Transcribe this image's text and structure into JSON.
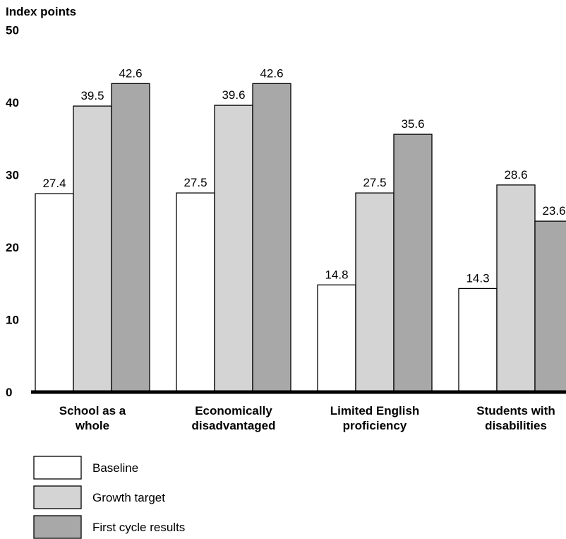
{
  "chart_data": {
    "type": "bar",
    "ylabel": "Index points",
    "ylim": [
      0,
      50
    ],
    "yticks": [
      0,
      10,
      20,
      30,
      40,
      50
    ],
    "grid": false,
    "legend_position": "bottom-left",
    "categories": [
      [
        "School as a",
        "whole"
      ],
      [
        "Economically",
        "disadvantaged"
      ],
      [
        "Limited English",
        "proficiency"
      ],
      [
        "Students with",
        "disabilities"
      ]
    ],
    "series": [
      {
        "name": "Baseline",
        "color": "#ffffff",
        "values": [
          27.4,
          27.5,
          14.8,
          14.3
        ],
        "labels": [
          "27.4",
          "27.5",
          "14.8",
          "14.3"
        ]
      },
      {
        "name": "Growth target",
        "color": "#d4d4d4",
        "values": [
          39.5,
          39.6,
          27.5,
          28.6
        ],
        "labels": [
          "39.5",
          "39.6",
          "27.5",
          "28.6"
        ]
      },
      {
        "name": "First cycle results",
        "color": "#a8a8a8",
        "values": [
          42.6,
          42.6,
          35.6,
          23.6
        ],
        "labels": [
          "42.6",
          "42.6",
          "35.6",
          "23.6"
        ]
      }
    ]
  }
}
